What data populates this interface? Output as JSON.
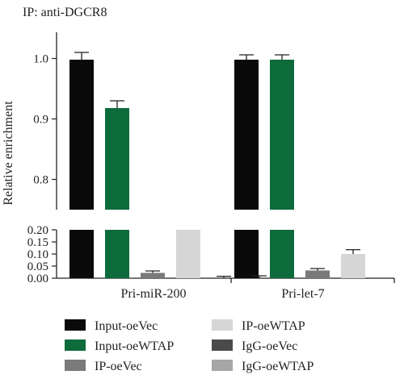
{
  "chart_data": {
    "type": "bar",
    "annotation": "IP: anti-DGCR8",
    "ylabel": "Relative enrichment",
    "categories": [
      "Pri-miR-200",
      "Pri-let-7"
    ],
    "series": [
      {
        "name": "Input-oeVec",
        "color": "#0a0a0a",
        "values": [
          0.998,
          0.998
        ],
        "errors": [
          0.012,
          0.008
        ]
      },
      {
        "name": "Input-oeWTAP",
        "color": "#0d6b3c",
        "values": [
          0.918,
          0.998
        ],
        "errors": [
          0.012,
          0.008
        ]
      },
      {
        "name": "IP-oeVec",
        "color": "#7a7a7a",
        "values": [
          0.022,
          0.032
        ],
        "errors": [
          0.008,
          0.008
        ]
      },
      {
        "name": "IP-oeWTAP",
        "color": "#d6d6d6",
        "values": [
          0.2,
          0.1
        ],
        "errors": [
          0.0,
          0.018
        ]
      },
      {
        "name": "IgG-oeVec",
        "color": "#4a4a4a",
        "values": [
          0.0,
          0.0
        ],
        "errors": [
          0.008,
          0.0
        ]
      },
      {
        "name": "IgG-oeWTAP",
        "color": "#a6a6a6",
        "values": [
          0.0,
          0.0
        ],
        "errors": [
          0.01,
          0.0
        ]
      }
    ],
    "axes": {
      "upper": {
        "ylim": [
          0.75,
          1.03
        ],
        "ticks": [
          "0.8",
          "0.9",
          "1.0"
        ]
      },
      "lower": {
        "ylim": [
          0.0,
          0.2
        ],
        "ticks": [
          "0.00",
          "0.05",
          "0.10",
          "0.15",
          "0.20"
        ]
      }
    },
    "legend": {
      "position": "bottom",
      "columns": 2
    }
  }
}
